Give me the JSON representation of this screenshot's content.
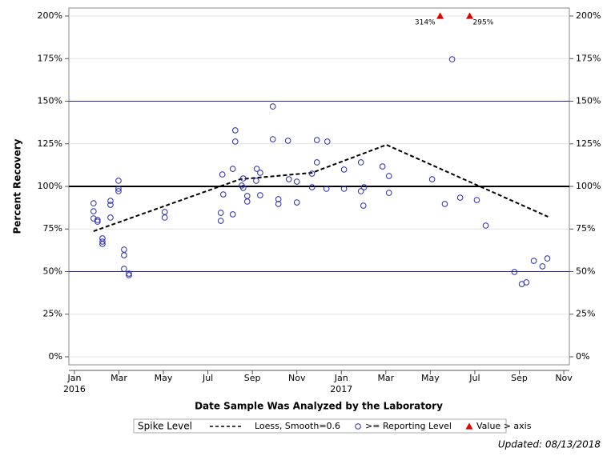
{
  "chart_data": {
    "type": "scatter",
    "y_label": "Percent Recovery",
    "x_label": "Date Sample Was Analyzed by the Laboratory",
    "footnote": "Updated: 08/13/2018",
    "legend_title": "Spike Level",
    "xlim": [
      -0.25,
      22.25
    ],
    "ylim": [
      -4.7,
      204.7
    ],
    "xticks": [
      {
        "value": 0,
        "label": "Jan",
        "year": "2016"
      },
      {
        "value": 2,
        "label": "Mar"
      },
      {
        "value": 4,
        "label": "May"
      },
      {
        "value": 6,
        "label": "Jul"
      },
      {
        "value": 8,
        "label": "Sep"
      },
      {
        "value": 10,
        "label": "Nov"
      },
      {
        "value": 12,
        "label": "Jan",
        "year": "2017"
      },
      {
        "value": 14,
        "label": "Mar"
      },
      {
        "value": 16,
        "label": "May"
      },
      {
        "value": 18,
        "label": "Jul"
      },
      {
        "value": 20,
        "label": "Sep"
      },
      {
        "value": 22,
        "label": "Nov"
      }
    ],
    "yticks": [
      {
        "value": 0,
        "label": "0%"
      },
      {
        "value": 25,
        "label": "25%"
      },
      {
        "value": 50,
        "label": "50%"
      },
      {
        "value": 75,
        "label": "75%"
      },
      {
        "value": 100,
        "label": "100%"
      },
      {
        "value": 125,
        "label": "125%"
      },
      {
        "value": 150,
        "label": "150%"
      },
      {
        "value": 175,
        "label": "175%"
      },
      {
        "value": 200,
        "label": "200%"
      }
    ],
    "reference_lines": [
      {
        "value": 50,
        "color": "#2222aa",
        "width": 1
      },
      {
        "value": 100,
        "color": "#000000",
        "width": 2
      },
      {
        "value": 150,
        "color": "#2222aa",
        "width": 1
      }
    ],
    "series": [
      {
        "name": "Loess, Smooth=0.6",
        "mark": "dashed-line",
        "color": "#000000",
        "x": [
          0.86,
          7.45,
          10.68,
          14.03,
          21.29
        ],
        "values": [
          73.7,
          104.2,
          108,
          124.4,
          82.2
        ]
      },
      {
        "name": ">= Reporting Level",
        "mark": "circle",
        "color": "#2a2ab0",
        "x": [
          0.86,
          0.86,
          0.86,
          1.04,
          1.04,
          1.26,
          1.26,
          1.26,
          1.62,
          1.62,
          1.62,
          1.98,
          1.98,
          1.98,
          2.23,
          2.23,
          2.23,
          2.45,
          2.45,
          4.06,
          4.06,
          6.58,
          6.58,
          6.65,
          6.69,
          7.12,
          7.12,
          7.23,
          7.23,
          7.52,
          7.59,
          7.59,
          7.77,
          7.77,
          8.17,
          8.2,
          8.35,
          8.35,
          8.92,
          8.92,
          9.17,
          9.17,
          9.6,
          9.64,
          10,
          10,
          10.68,
          10.68,
          10.9,
          10.9,
          11.33,
          11.37,
          12.12,
          12.12,
          12.88,
          12.88,
          12.99,
          13.02,
          13.85,
          14.14,
          14.14,
          16.08,
          16.65,
          16.98,
          17.34,
          18.09,
          18.49,
          19.78,
          20.11,
          20.32,
          20.65,
          21.04,
          21.26
        ],
        "values": [
          90.1,
          85.4,
          81.2,
          80.3,
          79.3,
          69.5,
          67.6,
          66.2,
          91.5,
          89.2,
          81.7,
          103.3,
          98.6,
          97.2,
          62.9,
          59.6,
          51.6,
          48.8,
          47.9,
          85,
          81.7,
          84.5,
          79.8,
          107,
          95.3,
          110.3,
          83.6,
          132.9,
          126.3,
          100.5,
          104.7,
          99.1,
          94.4,
          91.1,
          103.3,
          110.3,
          108,
          94.8,
          146.9,
          127.7,
          92.5,
          89.7,
          126.8,
          104.2,
          102.8,
          90.6,
          107.5,
          99.5,
          127.2,
          114.1,
          98.6,
          126.3,
          109.9,
          98.6,
          114.1,
          97.2,
          88.7,
          99.5,
          111.7,
          106.1,
          96.2,
          104.2,
          89.7,
          174.6,
          93.4,
          92,
          77,
          49.8,
          42.7,
          43.7,
          56.3,
          53.1,
          57.7
        ]
      },
      {
        "name": "Value > axis",
        "mark": "triangle",
        "color": "#e00000",
        "x": [
          16.44,
          17.77
        ],
        "values": [
          314,
          295
        ],
        "value_labels": [
          "314%",
          "295%"
        ]
      }
    ]
  }
}
